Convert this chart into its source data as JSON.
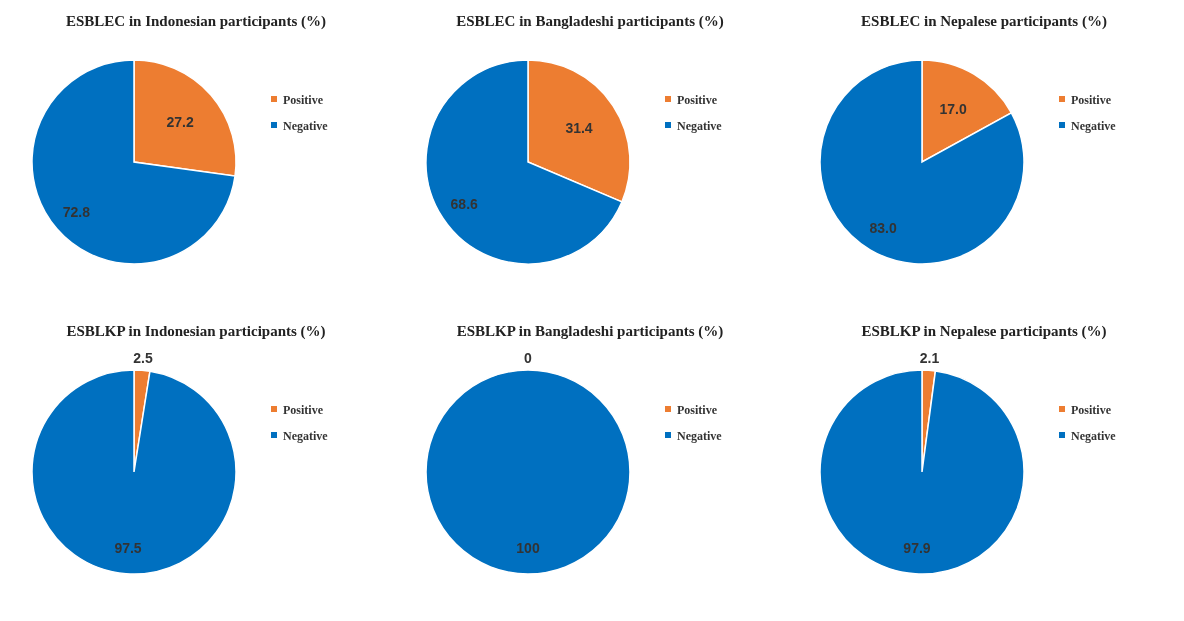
{
  "chart_data": [
    {
      "type": "pie",
      "title": "ESBLEC in Indonesian participants (%)",
      "categories": [
        "Positive",
        "Negative"
      ],
      "values": [
        27.2,
        72.8
      ],
      "value_labels": [
        "27.2",
        "72.8"
      ],
      "colors": [
        "#ed7d31",
        "#0070c0"
      ],
      "legend": "right"
    },
    {
      "type": "pie",
      "title": "ESBLEC in Bangladeshi participants (%)",
      "categories": [
        "Positive",
        "Negative"
      ],
      "values": [
        31.4,
        68.6
      ],
      "value_labels": [
        "31.4",
        "68.6"
      ],
      "colors": [
        "#ed7d31",
        "#0070c0"
      ],
      "legend": "right"
    },
    {
      "type": "pie",
      "title": "ESBLEC in Nepalese participants (%)",
      "categories": [
        "Positive",
        "Negative"
      ],
      "values": [
        17.0,
        83.0
      ],
      "value_labels": [
        "17.0",
        "83.0"
      ],
      "colors": [
        "#ed7d31",
        "#0070c0"
      ],
      "legend": "right"
    },
    {
      "type": "pie",
      "title": "ESBLKP in Indonesian participants (%)",
      "categories": [
        "Positive",
        "Negative"
      ],
      "values": [
        2.5,
        97.5
      ],
      "value_labels": [
        "2.5",
        "97.5"
      ],
      "colors": [
        "#ed7d31",
        "#0070c0"
      ],
      "legend": "right"
    },
    {
      "type": "pie",
      "title": "ESBLKP in Bangladeshi participants (%)",
      "categories": [
        "Positive",
        "Negative"
      ],
      "values": [
        0,
        100
      ],
      "value_labels": [
        "0",
        "100"
      ],
      "colors": [
        "#ed7d31",
        "#0070c0"
      ],
      "legend": "right"
    },
    {
      "type": "pie",
      "title": "ESBLKP in Nepalese participants (%)",
      "categories": [
        "Positive",
        "Negative"
      ],
      "values": [
        2.1,
        97.9
      ],
      "value_labels": [
        "2.1",
        "97.9"
      ],
      "colors": [
        "#ed7d31",
        "#0070c0"
      ],
      "legend": "right"
    }
  ]
}
